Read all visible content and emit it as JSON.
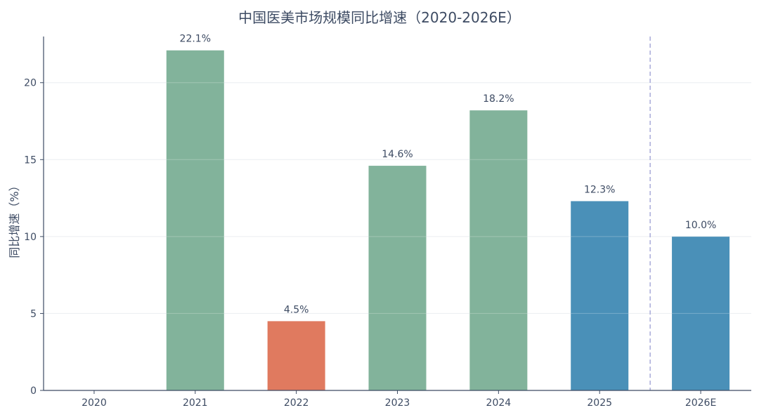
{
  "chart_data": {
    "type": "bar",
    "title": "中国医美市场规模同比增速（2020-2026E）",
    "ylabel": "同比增速（%）",
    "xlabel": "",
    "categories": [
      "2020",
      "2021",
      "2022",
      "2023",
      "2024",
      "2025",
      "2026E"
    ],
    "values": [
      null,
      22.1,
      4.5,
      14.6,
      18.2,
      12.3,
      10.0
    ],
    "value_labels": [
      "",
      "22.1%",
      "4.5%",
      "14.6%",
      "18.2%",
      "12.3%",
      "10.0%"
    ],
    "colors": [
      "#82b39b",
      "#82b39b",
      "#e07a5f",
      "#82b39b",
      "#82b39b",
      "#4a90b8",
      "#4a90b8"
    ],
    "ylim": [
      0,
      23
    ],
    "yticks": [
      0,
      5,
      10,
      15,
      20
    ],
    "grid": true,
    "divider_after_category": "2025",
    "divider_color": "#a9acd9"
  }
}
